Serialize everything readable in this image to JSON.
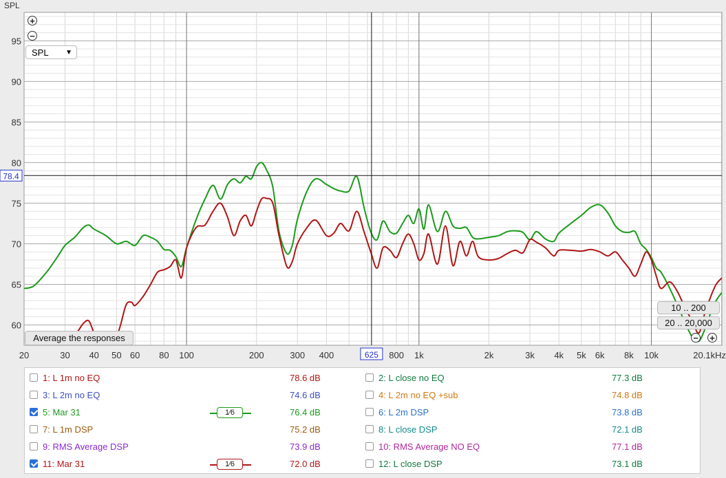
{
  "chart_data": {
    "type": "line",
    "ylabel": "SPL",
    "xscale": "log",
    "xlim": [
      20,
      20100
    ],
    "ylim": [
      57.5,
      98.5
    ],
    "x_ticks": [
      {
        "v": 20,
        "label": "20"
      },
      {
        "v": 30,
        "label": "30"
      },
      {
        "v": 40,
        "label": "40"
      },
      {
        "v": 50,
        "label": "50"
      },
      {
        "v": 60,
        "label": "60"
      },
      {
        "v": 80,
        "label": "80"
      },
      {
        "v": 100,
        "label": "100"
      },
      {
        "v": 200,
        "label": "200"
      },
      {
        "v": 300,
        "label": "300"
      },
      {
        "v": 400,
        "label": "400"
      },
      {
        "v": 800,
        "label": "800"
      },
      {
        "v": 1000,
        "label": "1k"
      },
      {
        "v": 2000,
        "label": "2k"
      },
      {
        "v": 3000,
        "label": "3k"
      },
      {
        "v": 4000,
        "label": "4k"
      },
      {
        "v": 5000,
        "label": "5k"
      },
      {
        "v": 6000,
        "label": "6k"
      },
      {
        "v": 8000,
        "label": "8k"
      },
      {
        "v": 10000,
        "label": "10k"
      },
      {
        "v": 20100,
        "label": "20.1kHz"
      }
    ],
    "y_ticks": [
      60,
      65,
      70,
      75,
      80,
      85,
      90,
      95
    ],
    "cursor": {
      "x": 625,
      "x_label": "625",
      "y": 78.4,
      "y_label": "78.4"
    },
    "series": [
      {
        "name": "5: Mar 31",
        "color": "#1a9a1a",
        "x": [
          20,
          22,
          25,
          28,
          30,
          33,
          36,
          38,
          40,
          45,
          50,
          55,
          60,
          65,
          70,
          75,
          80,
          85,
          90,
          95,
          100,
          110,
          120,
          130,
          140,
          150,
          160,
          170,
          180,
          190,
          200,
          210,
          220,
          235,
          250,
          270,
          285,
          300,
          330,
          360,
          400,
          430,
          460,
          500,
          540,
          580,
          620,
          660,
          700,
          750,
          800,
          850,
          900,
          950,
          1000,
          1050,
          1100,
          1200,
          1300,
          1400,
          1500,
          1600,
          1700,
          1800,
          2000,
          2200,
          2400,
          2600,
          2800,
          3000,
          3200,
          3500,
          3800,
          4000,
          4500,
          5000,
          5500,
          6000,
          6500,
          7000,
          7500,
          8000,
          8500,
          9000,
          9500,
          10000,
          10500,
          11000,
          12000,
          13000,
          14000,
          15000,
          16000,
          17000,
          18000,
          19000,
          20100
        ],
        "y": [
          64.5,
          64.8,
          66.5,
          68.5,
          69.8,
          70.8,
          72.0,
          72.3,
          71.8,
          71.0,
          70.0,
          70.3,
          69.8,
          71.0,
          70.8,
          70.3,
          69.3,
          69.2,
          68.4,
          67.2,
          69.5,
          73.0,
          75.5,
          77.2,
          75.5,
          77.3,
          78.0,
          77.5,
          78.3,
          78.0,
          79.5,
          80.0,
          79.2,
          77.0,
          71.5,
          68.8,
          69.8,
          73.0,
          76.5,
          78.0,
          77.3,
          76.8,
          76.5,
          76.5,
          78.3,
          74.5,
          71.5,
          70.5,
          72.8,
          71.5,
          71.3,
          72.5,
          73.5,
          72.5,
          74.3,
          71.8,
          74.8,
          71.5,
          74.0,
          72.2,
          71.9,
          72.0,
          70.8,
          70.6,
          70.8,
          71.0,
          71.5,
          71.6,
          71.4,
          70.5,
          71.5,
          70.6,
          70.3,
          71.3,
          72.5,
          73.5,
          74.5,
          74.8,
          73.8,
          72.2,
          71.5,
          71.4,
          71.5,
          70.0,
          69.3,
          68.3,
          67.0,
          66.5,
          64.5,
          62.3,
          60.2,
          58.5,
          58.0,
          59.5,
          61.5,
          63.0,
          64.0
        ]
      },
      {
        "name": "11: Mar 31",
        "color": "#b01515",
        "x": [
          28,
          30,
          32,
          34,
          36,
          38,
          40,
          42,
          45,
          48,
          50,
          52,
          55,
          58,
          60,
          65,
          70,
          75,
          80,
          85,
          90,
          95,
          100,
          110,
          120,
          130,
          140,
          150,
          160,
          170,
          180,
          190,
          200,
          210,
          220,
          235,
          250,
          270,
          285,
          300,
          330,
          360,
          400,
          430,
          460,
          500,
          540,
          580,
          620,
          660,
          700,
          750,
          800,
          850,
          900,
          950,
          1000,
          1050,
          1100,
          1200,
          1300,
          1400,
          1500,
          1600,
          1700,
          1800,
          2000,
          2200,
          2400,
          2600,
          2800,
          3000,
          3200,
          3500,
          3800,
          4000,
          4500,
          5000,
          5500,
          6000,
          6500,
          7000,
          7500,
          8000,
          8500,
          9000,
          9500,
          10000,
          10500,
          11000,
          12000,
          13000,
          14000,
          15000,
          16000,
          17000,
          18000,
          19000,
          20100
        ],
        "y": [
          58.5,
          58.0,
          58.5,
          59.2,
          60.2,
          60.5,
          59.0,
          58.2,
          57.8,
          57.5,
          58.5,
          60.0,
          62.5,
          62.8,
          62.4,
          63.5,
          65.0,
          66.5,
          66.8,
          67.2,
          68.0,
          65.8,
          69.5,
          72.0,
          72.3,
          74.0,
          75.0,
          73.3,
          71.0,
          72.8,
          73.5,
          72.2,
          74.0,
          75.5,
          75.6,
          75.0,
          71.0,
          67.2,
          67.8,
          70.0,
          72.0,
          72.9,
          71.0,
          71.3,
          72.5,
          71.6,
          74.0,
          71.5,
          69.0,
          67.0,
          69.5,
          69.2,
          68.3,
          70.0,
          71.2,
          70.0,
          68.0,
          68.8,
          71.2,
          67.5,
          72.2,
          67.3,
          70.3,
          68.5,
          70.3,
          68.4,
          68.0,
          68.2,
          68.8,
          69.2,
          68.9,
          70.5,
          70.2,
          69.5,
          68.5,
          69.2,
          69.2,
          69.1,
          69.3,
          69.0,
          68.5,
          69.0,
          68.0,
          67.0,
          66.0,
          67.5,
          69.0,
          68.0,
          66.0,
          64.5,
          65.3,
          64.0,
          62.0,
          60.5,
          59.0,
          61.5,
          63.5,
          65.0,
          65.8
        ]
      }
    ]
  },
  "controls": {
    "mode_select": "SPL",
    "average_button": "Average the responses",
    "range_low": "10 .. 200",
    "range_full": "20 .. 20,000",
    "zoom_in": "+",
    "zoom_out": "−"
  },
  "legend": [
    {
      "label": "1: L 1m no EQ",
      "value": "78.6 dB",
      "color": "#b01515",
      "checked": false,
      "smooth": ""
    },
    {
      "label": "2: L close no EQ",
      "value": "77.3 dB",
      "color": "#0f7a3e",
      "checked": false,
      "smooth": ""
    },
    {
      "label": "3: L 2m no EQ",
      "value": "74.6 dB",
      "color": "#3b4fc4",
      "checked": false,
      "smooth": ""
    },
    {
      "label": "4: L 2m no EQ +sub",
      "value": "74.8 dB",
      "color": "#d07a10",
      "checked": false,
      "smooth": ""
    },
    {
      "label": "5: Mar 31",
      "value": "76.4 dB",
      "color": "#1a9a1a",
      "checked": true,
      "smooth": "1⁄6"
    },
    {
      "label": "6: L 2m DSP",
      "value": "73.8 dB",
      "color": "#2a72c8",
      "checked": false,
      "smooth": ""
    },
    {
      "label": "7: L 1m DSP",
      "value": "75.2 dB",
      "color": "#9a5a10",
      "checked": false,
      "smooth": ""
    },
    {
      "label": "8: L close DSP",
      "value": "72.1 dB",
      "color": "#138a8a",
      "checked": false,
      "smooth": ""
    },
    {
      "label": "9: RMS Average DSP",
      "value": "73.9 dB",
      "color": "#8a2ad0",
      "checked": false,
      "smooth": ""
    },
    {
      "label": "10: RMS Average NO EQ",
      "value": "77.1 dB",
      "color": "#b0289a",
      "checked": false,
      "smooth": ""
    },
    {
      "label": "11: Mar 31",
      "value": "72.0 dB",
      "color": "#b01515",
      "checked": true,
      "smooth": "1⁄6"
    },
    {
      "label": "12: L close DSP",
      "value": "73.1 dB",
      "color": "#0f7a3e",
      "checked": false,
      "smooth": ""
    }
  ]
}
